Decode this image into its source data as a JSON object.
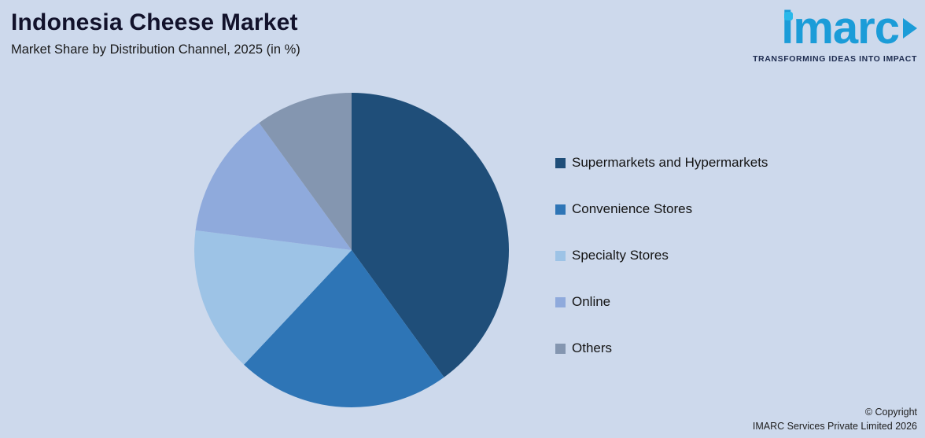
{
  "header": {
    "title": "Indonesia Cheese Market",
    "subtitle": "Market Share by Distribution Channel, 2025 (in %)"
  },
  "logo": {
    "text": "imarc",
    "tagline": "TRANSFORMING IDEAS INTO IMPACT"
  },
  "footer": {
    "copyright_line1": "© Copyright",
    "copyright_line2": "IMARC Services Private Limited 2026"
  },
  "chart_data": {
    "type": "pie",
    "title": "Indonesia Cheese Market",
    "subtitle": "Market Share by Distribution Channel, 2025 (in %)",
    "labels": [
      "Supermarkets and Hypermarkets",
      "Convenience Stores",
      "Specialty Stores",
      "Online",
      "Others"
    ],
    "values": [
      40,
      22,
      15,
      13,
      10
    ],
    "unit": "%",
    "colors": [
      "#1F4E79",
      "#2E75B6",
      "#9DC3E6",
      "#8FAADC",
      "#8496B0"
    ],
    "start_angle_deg": 0,
    "direction": "clockwise",
    "legend_position": "right"
  },
  "colors": {
    "background": "#CDD9EC",
    "logo_blue": "#1B9CD8",
    "logo_dot_cyan": "#29B8EA",
    "tagline_navy": "#1D2B4F"
  }
}
